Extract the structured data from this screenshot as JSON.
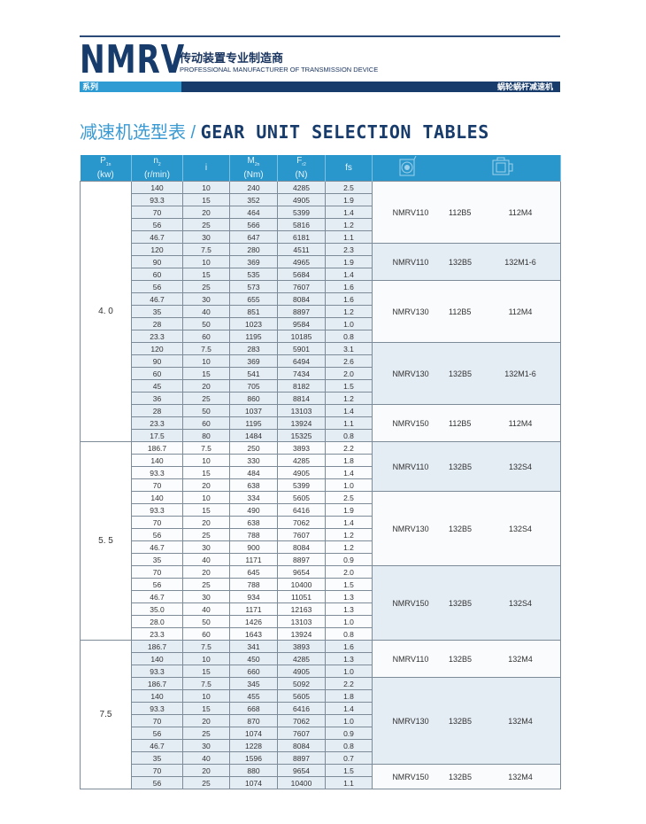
{
  "header": {
    "logo": "NMRV",
    "tagline_cn": "传动装置专业制造商",
    "tagline_en": "PROFESSIONAL MANUFACTURER OF TRANSMISSION DEVICE",
    "series_label": "系列",
    "product_label": "蜗轮蜗杆减速机"
  },
  "title": {
    "cn": "减速机选型表 / ",
    "en": "GEAR UNIT SELECTION TABLES"
  },
  "table": {
    "columns": [
      {
        "main": "P",
        "sub": "1n",
        "unit": "(kw)"
      },
      {
        "main": "n",
        "sub": "2",
        "unit": "(r/min)"
      },
      {
        "main": "i",
        "sub": "",
        "unit": ""
      },
      {
        "main": "M",
        "sub": "2n",
        "unit": "(Nm)"
      },
      {
        "main": "F",
        "sub": "r2",
        "unit": "(N)"
      },
      {
        "main": "fs",
        "sub": "",
        "unit": ""
      }
    ],
    "icons": [
      "worm-gearbox-front-icon",
      "gearbox-motor-side-icon"
    ],
    "colors": {
      "header": "#2a97cc",
      "shade": "#e4ecf4",
      "navy": "#173b6a"
    },
    "groups": [
      {
        "power": "4. 0",
        "units": [
          {
            "model": "NMRV110",
            "flange": "112B5",
            "motor": "112M4",
            "rows": [
              [
                "140",
                "10",
                "240",
                "4285",
                "2.5"
              ],
              [
                "93.3",
                "15",
                "352",
                "4905",
                "1.9"
              ],
              [
                "70",
                "20",
                "464",
                "5399",
                "1.4"
              ],
              [
                "56",
                "25",
                "566",
                "5816",
                "1.2"
              ],
              [
                "46.7",
                "30",
                "647",
                "6181",
                "1.1"
              ]
            ]
          },
          {
            "model": "NMRV110",
            "flange": "132B5",
            "motor": "132M1-6",
            "rows": [
              [
                "120",
                "7.5",
                "280",
                "4511",
                "2.3"
              ],
              [
                "90",
                "10",
                "369",
                "4965",
                "1.9"
              ],
              [
                "60",
                "15",
                "535",
                "5684",
                "1.4"
              ]
            ]
          },
          {
            "model": "NMRV130",
            "flange": "112B5",
            "motor": "112M4",
            "rows": [
              [
                "56",
                "25",
                "573",
                "7607",
                "1.6"
              ],
              [
                "46.7",
                "30",
                "655",
                "8084",
                "1.6"
              ],
              [
                "35",
                "40",
                "851",
                "8897",
                "1.2"
              ],
              [
                "28",
                "50",
                "1023",
                "9584",
                "1.0"
              ],
              [
                "23.3",
                "60",
                "1195",
                "10185",
                "0.8"
              ]
            ]
          },
          {
            "model": "NMRV130",
            "flange": "132B5",
            "motor": "132M1-6",
            "rows": [
              [
                "120",
                "7.5",
                "283",
                "5901",
                "3.1"
              ],
              [
                "90",
                "10",
                "369",
                "6494",
                "2.6"
              ],
              [
                "60",
                "15",
                "541",
                "7434",
                "2.0"
              ],
              [
                "45",
                "20",
                "705",
                "8182",
                "1.5"
              ],
              [
                "36",
                "25",
                "860",
                "8814",
                "1.2"
              ]
            ]
          },
          {
            "model": "NMRV150",
            "flange": "112B5",
            "motor": "112M4",
            "rows": [
              [
                "28",
                "50",
                "1037",
                "13103",
                "1.4"
              ],
              [
                "23.3",
                "60",
                "1195",
                "13924",
                "1.1"
              ],
              [
                "17.5",
                "80",
                "1484",
                "15325",
                "0.8"
              ]
            ]
          }
        ]
      },
      {
        "power": "5. 5",
        "units": [
          {
            "model": "NMRV110",
            "flange": "132B5",
            "motor": "132S4",
            "rows": [
              [
                "186.7",
                "7.5",
                "250",
                "3893",
                "2.2"
              ],
              [
                "140",
                "10",
                "330",
                "4285",
                "1.8"
              ],
              [
                "93.3",
                "15",
                "484",
                "4905",
                "1.4"
              ],
              [
                "70",
                "20",
                "638",
                "5399",
                "1.0"
              ]
            ]
          },
          {
            "model": "NMRV130",
            "flange": "132B5",
            "motor": "132S4",
            "rows": [
              [
                "140",
                "10",
                "334",
                "5605",
                "2.5"
              ],
              [
                "93.3",
                "15",
                "490",
                "6416",
                "1.9"
              ],
              [
                "70",
                "20",
                "638",
                "7062",
                "1.4"
              ],
              [
                "56",
                "25",
                "788",
                "7607",
                "1.2"
              ],
              [
                "46.7",
                "30",
                "900",
                "8084",
                "1.2"
              ],
              [
                "35",
                "40",
                "1171",
                "8897",
                "0.9"
              ]
            ]
          },
          {
            "model": "NMRV150",
            "flange": "132B5",
            "motor": "132S4",
            "rows": [
              [
                "70",
                "20",
                "645",
                "9654",
                "2.0"
              ],
              [
                "56",
                "25",
                "788",
                "10400",
                "1.5"
              ],
              [
                "46.7",
                "30",
                "934",
                "11051",
                "1.3"
              ],
              [
                "35.0",
                "40",
                "1171",
                "12163",
                "1.3"
              ],
              [
                "28.0",
                "50",
                "1426",
                "13103",
                "1.0"
              ],
              [
                "23.3",
                "60",
                "1643",
                "13924",
                "0.8"
              ]
            ]
          }
        ]
      },
      {
        "power": "7.5",
        "units": [
          {
            "model": "NMRV110",
            "flange": "132B5",
            "motor": "132M4",
            "rows": [
              [
                "186.7",
                "7.5",
                "341",
                "3893",
                "1.6"
              ],
              [
                "140",
                "10",
                "450",
                "4285",
                "1.3"
              ],
              [
                "93.3",
                "15",
                "660",
                "4905",
                "1.0"
              ]
            ]
          },
          {
            "model": "NMRV130",
            "flange": "132B5",
            "motor": "132M4",
            "rows": [
              [
                "186.7",
                "7.5",
                "345",
                "5092",
                "2.2"
              ],
              [
                "140",
                "10",
                "455",
                "5605",
                "1.8"
              ],
              [
                "93.3",
                "15",
                "668",
                "6416",
                "1.4"
              ],
              [
                "70",
                "20",
                "870",
                "7062",
                "1.0"
              ],
              [
                "56",
                "25",
                "1074",
                "7607",
                "0.9"
              ],
              [
                "46.7",
                "30",
                "1228",
                "8084",
                "0.8"
              ],
              [
                "35",
                "40",
                "1596",
                "8897",
                "0.7"
              ]
            ]
          },
          {
            "model": "NMRV150",
            "flange": "132B5",
            "motor": "132M4",
            "rows": [
              [
                "70",
                "20",
                "880",
                "9654",
                "1.5"
              ],
              [
                "56",
                "25",
                "1074",
                "10400",
                "1.1"
              ]
            ]
          }
        ]
      }
    ]
  }
}
